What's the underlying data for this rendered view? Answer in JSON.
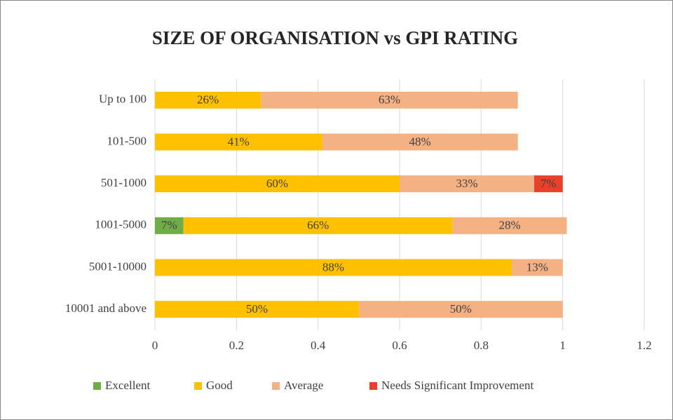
{
  "chart_data": {
    "type": "stacked-barh",
    "title": "SIZE OF ORGANISATION vs GPI RATING",
    "categories": [
      "Up to 100",
      "101-500",
      "501-1000",
      "1001-5000",
      "5001-10000",
      "10001 and above"
    ],
    "series": [
      {
        "name": "Excellent",
        "color": "#70ad47",
        "values": [
          null,
          null,
          null,
          0.07,
          null,
          null
        ],
        "value_labels": [
          null,
          null,
          null,
          "7%",
          null,
          null
        ]
      },
      {
        "name": "Good",
        "color": "#ffc000",
        "values": [
          0.26,
          0.41,
          0.6,
          0.66,
          0.875,
          0.5
        ],
        "value_labels": [
          "26%",
          "41%",
          "60%",
          "66%",
          "88%",
          "50%"
        ]
      },
      {
        "name": "Average",
        "color": "#f4b183",
        "values": [
          0.63,
          0.48,
          0.33,
          0.28,
          0.125,
          0.5
        ],
        "value_labels": [
          "63%",
          "48%",
          "33%",
          "28%",
          "13%",
          "50%"
        ]
      },
      {
        "name": "Needs Significant Improvement",
        "color": "#e8402a",
        "values": [
          null,
          null,
          0.07,
          null,
          null,
          null
        ],
        "value_labels": [
          null,
          null,
          "7%",
          null,
          null,
          null
        ]
      }
    ],
    "xlim": [
      0,
      1.2
    ],
    "xticks": [
      0,
      0.2,
      0.4,
      0.6,
      0.8,
      1,
      1.2
    ],
    "grid": true,
    "legend": "bottom"
  }
}
